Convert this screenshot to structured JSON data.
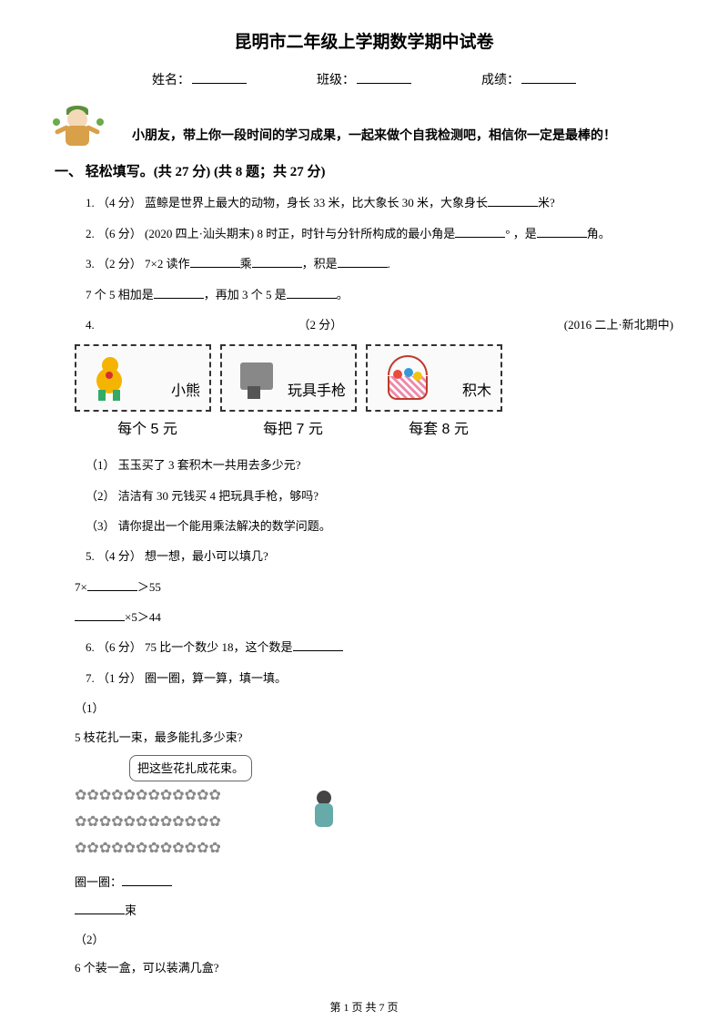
{
  "title": "昆明市二年级上学期数学期中试卷",
  "info": {
    "name_label": "姓名：",
    "class_label": "班级：",
    "score_label": "成绩："
  },
  "greeting": "小朋友，带上你一段时间的学习成果，一起来做个自我检测吧，相信你一定是最棒的！",
  "section1": "一、 轻松填写。(共 27 分)  (共 8 题；共 27 分)",
  "q1": {
    "prefix": "1. （4 分） 蓝鲸是世界上最大的动物，身长 33 米，比大象长 30 米，大象身长",
    "suffix": "米?"
  },
  "q2": {
    "prefix": "2. （6 分） (2020 四上·汕头期末) 8 时正，时针与分针所构成的最小角是",
    "mid": "° ，是",
    "suffix": "角。"
  },
  "q3a": {
    "prefix": "3. （2 分） 7×2 读作",
    "mid1": "乘",
    "mid2": "，积是",
    "suffix": "."
  },
  "q3b": {
    "prefix": "7 个 5 相加是",
    "mid": "，再加 3 个 5 是",
    "suffix": "。"
  },
  "q4": {
    "num": "4.",
    "points": "（2 分）",
    "source": "(2016 二上·新北期中)"
  },
  "products": {
    "bear": "小熊",
    "gun": "玩具手枪",
    "blocks": "积木",
    "price_bear": "每个 5 元",
    "price_gun": "每把 7 元",
    "price_blocks": "每套 8 元"
  },
  "q4_1": "（1） 玉玉买了 3 套积木一共用去多少元?",
  "q4_2": "（2） 洁洁有 30 元钱买 4 把玩具手枪，够吗?",
  "q4_3": "（3） 请你提出一个能用乘法解决的数学问题。",
  "q5": "5. （4 分） 想一想，最小可以填几?",
  "q5a": {
    "prefix": "7×",
    "suffix": "＞55"
  },
  "q5b": {
    "suffix": "×5＞44"
  },
  "q6": {
    "prefix": "6. （6 分） 75 比一个数少 18，这个数是"
  },
  "q7": "7. （1 分） 圈一圈，算一算，填一填。",
  "q7_1": "（1）",
  "q7_text": "5 枝花扎一束，最多能扎多少束?",
  "speech": "把这些花扎成花束。",
  "q7_circle": "圈一圈：",
  "q7_shu": "束",
  "q7_2": "（2）",
  "q7_box": "6 个装一盒，可以装满几盒?",
  "footer": "第 1 页 共 7 页",
  "colors": {
    "text": "#000000",
    "bg": "#ffffff"
  }
}
